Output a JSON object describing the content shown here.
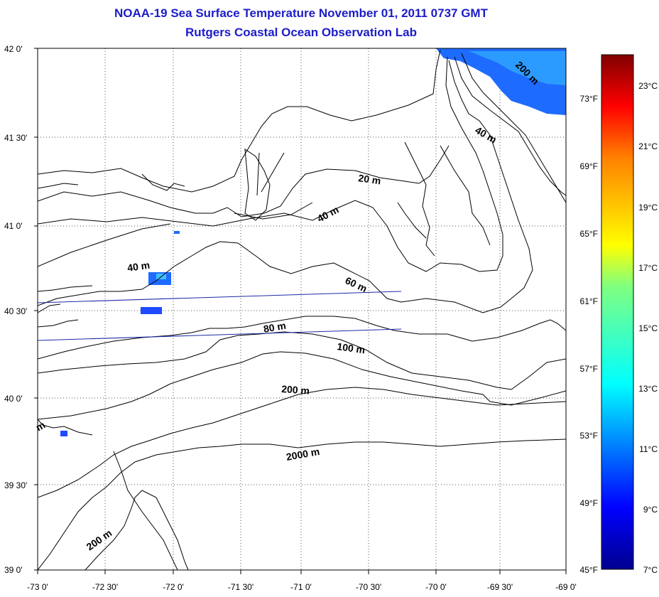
{
  "title": "NOAA-19 Sea Surface Temperature November 01, 2011 0737 GMT",
  "subtitle": "Rutgers Coastal Ocean Observation Lab",
  "map": {
    "lat_labels": [
      "42 0'",
      "41 30'",
      "41 0'",
      "40 30'",
      "40 0'",
      "39 30'",
      "39 0'"
    ],
    "lon_labels": [
      "-73 0'",
      "-72 30'",
      "-72 0'",
      "-71 30'",
      "-71 0'",
      "-70 30'",
      "-70 0'",
      "-69 30'",
      "-69 0'"
    ],
    "contour_labels": [
      "200 m",
      "40 m",
      "20 m",
      "40 m",
      "40 m",
      "60 m",
      "80 m",
      "100 m",
      "200 m",
      "2000 m",
      "200 m",
      "m"
    ]
  },
  "colorbar": {
    "fahrenheit_labels": [
      "73°F",
      "69°F",
      "65°F",
      "61°F",
      "57°F",
      "53°F",
      "49°F",
      "45°F"
    ],
    "celsius_labels": [
      "23°C",
      "21°C",
      "19°C",
      "17°C",
      "15°C",
      "13°C",
      "11°C",
      "9°C",
      "7°C"
    ],
    "colors": [
      "#7f0000",
      "#ff0000",
      "#ff8000",
      "#ffff00",
      "#80ff80",
      "#00ffff",
      "#0080ff",
      "#0000ff",
      "#00008f"
    ]
  }
}
